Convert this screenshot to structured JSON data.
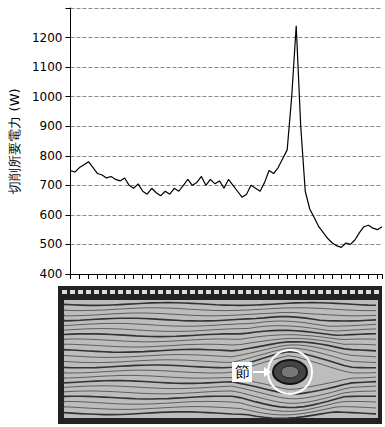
{
  "chart_data": {
    "type": "line",
    "y_label": "切削所要電力 (W)",
    "categories": [
      null,
      null,
      null,
      null,
      null,
      null,
      null,
      null,
      null,
      null,
      null,
      null,
      null,
      null,
      null,
      null,
      null,
      null,
      null,
      null,
      null,
      null,
      null,
      null,
      null,
      null,
      null,
      null,
      null,
      null,
      null,
      null,
      null,
      null,
      null,
      null,
      null,
      null,
      null,
      null,
      null,
      null,
      null,
      null,
      null,
      null,
      null,
      null,
      null,
      null,
      null,
      null,
      null,
      null,
      null,
      null,
      null,
      null,
      null,
      null,
      null,
      null,
      null,
      null,
      null,
      null,
      null,
      null,
      null,
      null
    ],
    "values": [
      750,
      745,
      760,
      770,
      780,
      760,
      740,
      735,
      725,
      730,
      720,
      715,
      725,
      700,
      690,
      705,
      680,
      670,
      690,
      675,
      665,
      680,
      670,
      690,
      680,
      700,
      720,
      700,
      710,
      730,
      700,
      720,
      705,
      715,
      690,
      720,
      700,
      680,
      660,
      670,
      700,
      690,
      680,
      710,
      750,
      740,
      760,
      790,
      820,
      1000,
      1240,
      900,
      680,
      620,
      590,
      560,
      540,
      520,
      505,
      495,
      490,
      505,
      500,
      515,
      540,
      560,
      565,
      555,
      550,
      560
    ],
    "color": "#000000",
    "ylim": [
      400,
      1300
    ],
    "yticks": [
      400,
      500,
      600,
      700,
      800,
      900,
      1000,
      1100,
      1200
    ],
    "grid": true,
    "tick_labels": "y",
    "photo": {
      "label": "節"
    }
  }
}
